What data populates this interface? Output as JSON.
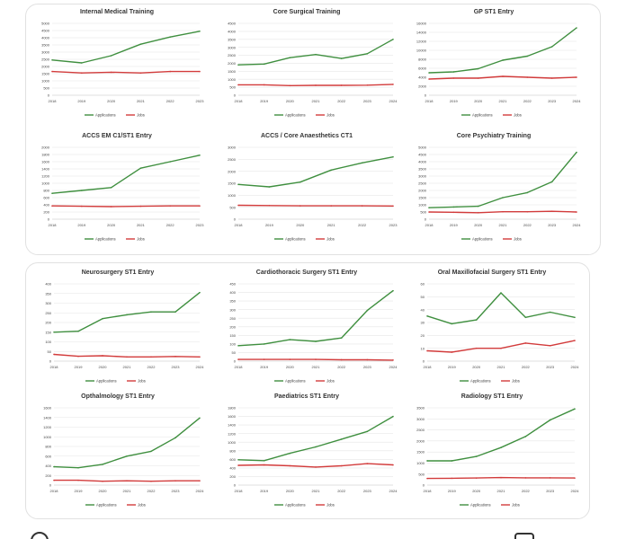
{
  "colors": {
    "applications": "#3f8f3f",
    "jobs": "#d23b3b",
    "grid": "#e6e6e6",
    "axis": "#bfbfbf",
    "text": "#444444"
  },
  "chart_data": [
    {
      "type": "line",
      "title": "Internal Medical Training",
      "categories": [
        "2018",
        "2019",
        "2020",
        "2021",
        "2022",
        "2023"
      ],
      "series": [
        {
          "name": "Applications",
          "values": [
            2450,
            2250,
            2750,
            3550,
            4050,
            4450
          ]
        },
        {
          "name": "Jobs",
          "values": [
            1650,
            1550,
            1600,
            1550,
            1650,
            1650
          ]
        }
      ],
      "ylim": [
        0,
        5000
      ],
      "yticks": [
        "0",
        "500",
        "1000",
        "1500",
        "2000",
        "2500",
        "3000",
        "3500",
        "4000",
        "4500",
        "5000"
      ],
      "legend": "bottom"
    },
    {
      "type": "line",
      "title": "Core Surgical Training",
      "categories": [
        "2018",
        "2019",
        "2020",
        "2021",
        "2022",
        "2023",
        "2024"
      ],
      "series": [
        {
          "name": "Applications",
          "values": [
            1900,
            1950,
            2350,
            2550,
            2300,
            2600,
            3500
          ]
        },
        {
          "name": "Jobs",
          "values": [
            650,
            650,
            600,
            620,
            620,
            630,
            680
          ]
        }
      ],
      "ylim": [
        0,
        4500
      ],
      "yticks": [
        "0",
        "500",
        "1000",
        "1500",
        "2000",
        "2500",
        "3000",
        "3500",
        "4000",
        "4500"
      ],
      "legend": "bottom"
    },
    {
      "type": "line",
      "title": "GP ST1 Entry",
      "categories": [
        "2018",
        "2019",
        "2020",
        "2021",
        "2022",
        "2023",
        "2024"
      ],
      "series": [
        {
          "name": "Applications",
          "values": [
            5000,
            5200,
            5900,
            7800,
            8700,
            10800,
            15000
          ]
        },
        {
          "name": "Jobs",
          "values": [
            3600,
            3800,
            3800,
            4200,
            4000,
            3800,
            4000
          ]
        }
      ],
      "ylim": [
        0,
        16000
      ],
      "yticks": [
        "0",
        "2000",
        "4000",
        "6000",
        "8000",
        "10000",
        "12000",
        "14000",
        "16000"
      ],
      "legend": "bottom"
    },
    {
      "type": "line",
      "title": "ACCS EM C1/ST1 Entry",
      "categories": [
        "2018",
        "2019",
        "2020",
        "2021",
        "2022",
        "2023"
      ],
      "series": [
        {
          "name": "Applications",
          "values": [
            720,
            800,
            880,
            1420,
            1600,
            1780
          ]
        },
        {
          "name": "Jobs",
          "values": [
            370,
            360,
            350,
            360,
            370,
            370
          ]
        }
      ],
      "ylim": [
        0,
        2000
      ],
      "yticks": [
        "0",
        "200",
        "400",
        "600",
        "800",
        "1000",
        "1200",
        "1400",
        "1600",
        "1800",
        "2000"
      ],
      "legend": "bottom"
    },
    {
      "type": "line",
      "title": "ACCS / Core Anaesthetics CT1",
      "categories": [
        "2018",
        "2019",
        "2020",
        "2021",
        "2022",
        "2023"
      ],
      "series": [
        {
          "name": "Applications",
          "values": [
            1450,
            1350,
            1550,
            2050,
            2350,
            2600
          ]
        },
        {
          "name": "Jobs",
          "values": [
            580,
            570,
            560,
            560,
            560,
            550
          ]
        }
      ],
      "ylim": [
        0,
        3000
      ],
      "yticks": [
        "0",
        "500",
        "1000",
        "1500",
        "2000",
        "2500",
        "3000"
      ],
      "legend": "bottom"
    },
    {
      "type": "line",
      "title": "Core Psychiatry Training",
      "categories": [
        "2018",
        "2019",
        "2020",
        "2021",
        "2022",
        "2023",
        "2024"
      ],
      "series": [
        {
          "name": "Applications",
          "values": [
            800,
            850,
            900,
            1500,
            1850,
            2600,
            4650
          ]
        },
        {
          "name": "Jobs",
          "values": [
            500,
            480,
            450,
            520,
            520,
            550,
            500
          ]
        }
      ],
      "ylim": [
        0,
        5000
      ],
      "yticks": [
        "0",
        "500",
        "1000",
        "1500",
        "2000",
        "2500",
        "3000",
        "3500",
        "4000",
        "4500",
        "5000"
      ],
      "legend": "bottom"
    },
    {
      "type": "line",
      "title": "Neurosurgery ST1 Entry",
      "categories": [
        "2018",
        "2019",
        "2020",
        "2021",
        "2022",
        "2023",
        "2024"
      ],
      "series": [
        {
          "name": "Applications",
          "values": [
            150,
            155,
            220,
            240,
            255,
            255,
            355
          ]
        },
        {
          "name": "Jobs",
          "values": [
            35,
            25,
            28,
            22,
            22,
            24,
            22
          ]
        }
      ],
      "ylim": [
        0,
        400
      ],
      "yticks": [
        "0",
        "50",
        "100",
        "150",
        "200",
        "250",
        "300",
        "350",
        "400"
      ],
      "legend": "bottom"
    },
    {
      "type": "line",
      "title": "Cardiothoracic Surgery ST1 Entry",
      "categories": [
        "2018",
        "2019",
        "2020",
        "2021",
        "2022",
        "2023",
        "2024"
      ],
      "series": [
        {
          "name": "Applications",
          "values": [
            90,
            100,
            125,
            115,
            135,
            295,
            410
          ]
        },
        {
          "name": "Jobs",
          "values": [
            10,
            10,
            10,
            10,
            8,
            8,
            6
          ]
        }
      ],
      "ylim": [
        0,
        450
      ],
      "yticks": [
        "0",
        "50",
        "100",
        "150",
        "200",
        "250",
        "300",
        "350",
        "400",
        "450"
      ],
      "legend": "bottom"
    },
    {
      "type": "line",
      "title": "Oral Maxillofacial Surgery ST1 Entry",
      "categories": [
        "2018",
        "2019",
        "2020",
        "2021",
        "2022",
        "2023",
        "2024"
      ],
      "series": [
        {
          "name": "Applications",
          "values": [
            35,
            29,
            32,
            53,
            34,
            38,
            34
          ]
        },
        {
          "name": "Jobs",
          "values": [
            8,
            7,
            10,
            10,
            14,
            12,
            16
          ]
        }
      ],
      "ylim": [
        0,
        60
      ],
      "yticks": [
        "0",
        "10",
        "20",
        "30",
        "40",
        "50",
        "60"
      ],
      "legend": "bottom"
    },
    {
      "type": "line",
      "title": "Opthalmology ST1 Entry",
      "categories": [
        "2018",
        "2019",
        "2020",
        "2021",
        "2022",
        "2023",
        "2024"
      ],
      "series": [
        {
          "name": "Applications",
          "values": [
            380,
            360,
            430,
            600,
            700,
            980,
            1390
          ]
        },
        {
          "name": "Jobs",
          "values": [
            100,
            100,
            80,
            90,
            80,
            90,
            90
          ]
        }
      ],
      "ylim": [
        0,
        1600
      ],
      "yticks": [
        "0",
        "200",
        "400",
        "600",
        "800",
        "1000",
        "1200",
        "1400",
        "1600"
      ],
      "legend": "bottom"
    },
    {
      "type": "line",
      "title": "Paediatrics ST1 Entry",
      "categories": [
        "2018",
        "2019",
        "2020",
        "2021",
        "2022",
        "2023",
        "2024"
      ],
      "series": [
        {
          "name": "Applications",
          "values": [
            590,
            570,
            740,
            890,
            1070,
            1250,
            1600
          ]
        },
        {
          "name": "Jobs",
          "values": [
            460,
            470,
            450,
            420,
            450,
            500,
            470
          ]
        }
      ],
      "ylim": [
        0,
        1800
      ],
      "yticks": [
        "0",
        "200",
        "400",
        "600",
        "800",
        "1000",
        "1200",
        "1400",
        "1600",
        "1800"
      ],
      "legend": "bottom"
    },
    {
      "type": "line",
      "title": "Radiology ST1 Entry",
      "categories": [
        "2018",
        "2019",
        "2020",
        "2021",
        "2022",
        "2023",
        "2024"
      ],
      "series": [
        {
          "name": "Applications",
          "values": [
            1100,
            1100,
            1300,
            1700,
            2200,
            2950,
            3450
          ]
        },
        {
          "name": "Jobs",
          "values": [
            300,
            310,
            320,
            340,
            330,
            330,
            320
          ]
        }
      ],
      "ylim": [
        0,
        3500
      ],
      "yticks": [
        "0",
        "500",
        "1000",
        "1500",
        "2000",
        "2500",
        "3000",
        "3500"
      ],
      "legend": "bottom"
    }
  ]
}
